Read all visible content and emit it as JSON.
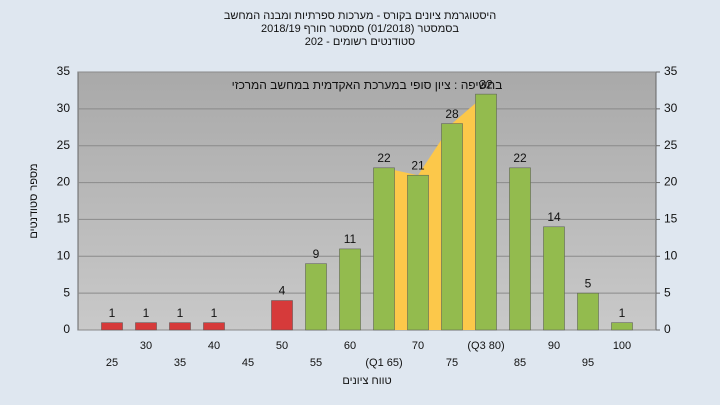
{
  "chart_data": {
    "type": "bar",
    "title": "היסטוגרמת ציונים בקורס - מערכות ספרתיות ומבנה המחשב",
    "subtitle": "בסמסטר  (01/2018)  סמסטר חורף  2018/19",
    "subtitle2": "סטודנטים רשומים - 202",
    "annotation": "בחשיפה : ציון סופי במערכת האקדמית במחשב המרכזי",
    "x_label": "טווח ציונים",
    "y_label": "מספר סטודנטים",
    "categories": [
      "25",
      "30",
      "35",
      "40",
      "45",
      "50",
      "55",
      "60",
      "(Q1 65)",
      "70",
      "75",
      "(Q3 80)",
      "85",
      "90",
      "95",
      "100"
    ],
    "values": [
      1,
      1,
      1,
      1,
      0,
      4,
      9,
      11,
      22,
      21,
      28,
      32,
      22,
      14,
      5,
      1
    ],
    "colors": [
      "#d63a3a",
      "#d63a3a",
      "#d63a3a",
      "#d63a3a",
      "#d63a3a",
      "#d63a3a",
      "#93bb4e",
      "#93bb4e",
      "#93bb4e",
      "#93bb4e",
      "#93bb4e",
      "#93bb4e",
      "#93bb4e",
      "#93bb4e",
      "#93bb4e",
      "#93bb4e"
    ],
    "area_color": "#fcc84a",
    "ylim": [
      0,
      35
    ],
    "yticks": [
      0,
      5,
      10,
      15,
      20,
      25,
      30,
      35
    ],
    "y2lim": [
      0,
      35
    ],
    "y2ticks": [
      0,
      5,
      10,
      15,
      20,
      25,
      30,
      35
    ],
    "grid": true
  }
}
